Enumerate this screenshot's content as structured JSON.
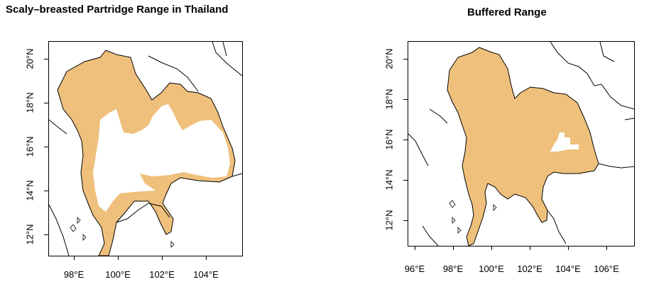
{
  "panels": [
    {
      "title": "Scaly–breasted Partridge Range in Thailand",
      "x_ticks": [
        "98°E",
        "100°E",
        "102°E",
        "104°E"
      ],
      "y_ticks": [
        "20°N",
        "18°N",
        "16°N",
        "14°N",
        "12°N"
      ]
    },
    {
      "title": "Buffered Range",
      "x_ticks": [
        "96°E",
        "98°E",
        "100°E",
        "102°E",
        "104°E",
        "106°E"
      ],
      "y_ticks": [
        "20°N",
        "18°N",
        "16°N",
        "14°N",
        "12°N"
      ]
    }
  ],
  "colors": {
    "range_fill": "#efc07c",
    "borders": "#000000"
  }
}
